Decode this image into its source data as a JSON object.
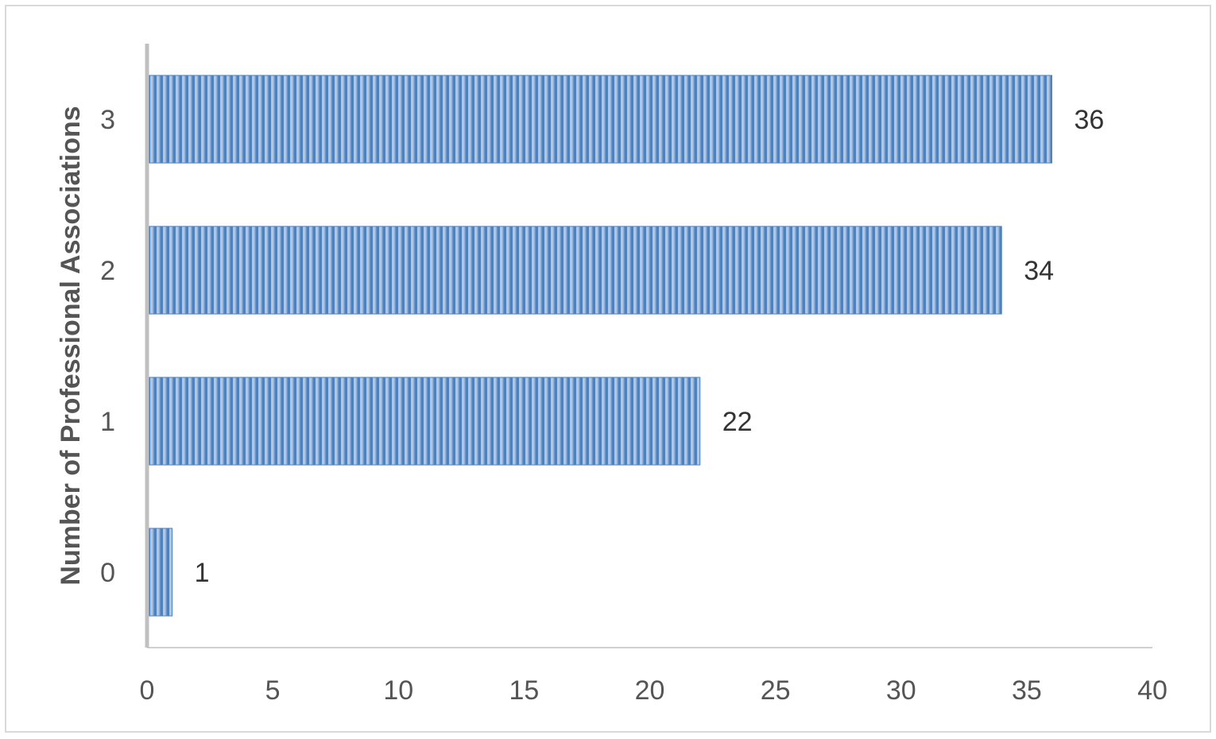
{
  "chart_data": {
    "type": "bar",
    "orientation": "horizontal",
    "categories": [
      "0",
      "1",
      "2",
      "3"
    ],
    "values": [
      1,
      22,
      34,
      36
    ],
    "title": "",
    "xlabel": "",
    "ylabel": "Number of Professional Associations",
    "xlim": [
      0,
      40
    ],
    "x_ticks": [
      "0",
      "5",
      "10",
      "15",
      "20",
      "25",
      "30",
      "35",
      "40"
    ],
    "grid": false,
    "legend": "none",
    "bar_color": "#4f81bd",
    "bar_stripe_color": "#ffffff",
    "data_labels": true
  }
}
